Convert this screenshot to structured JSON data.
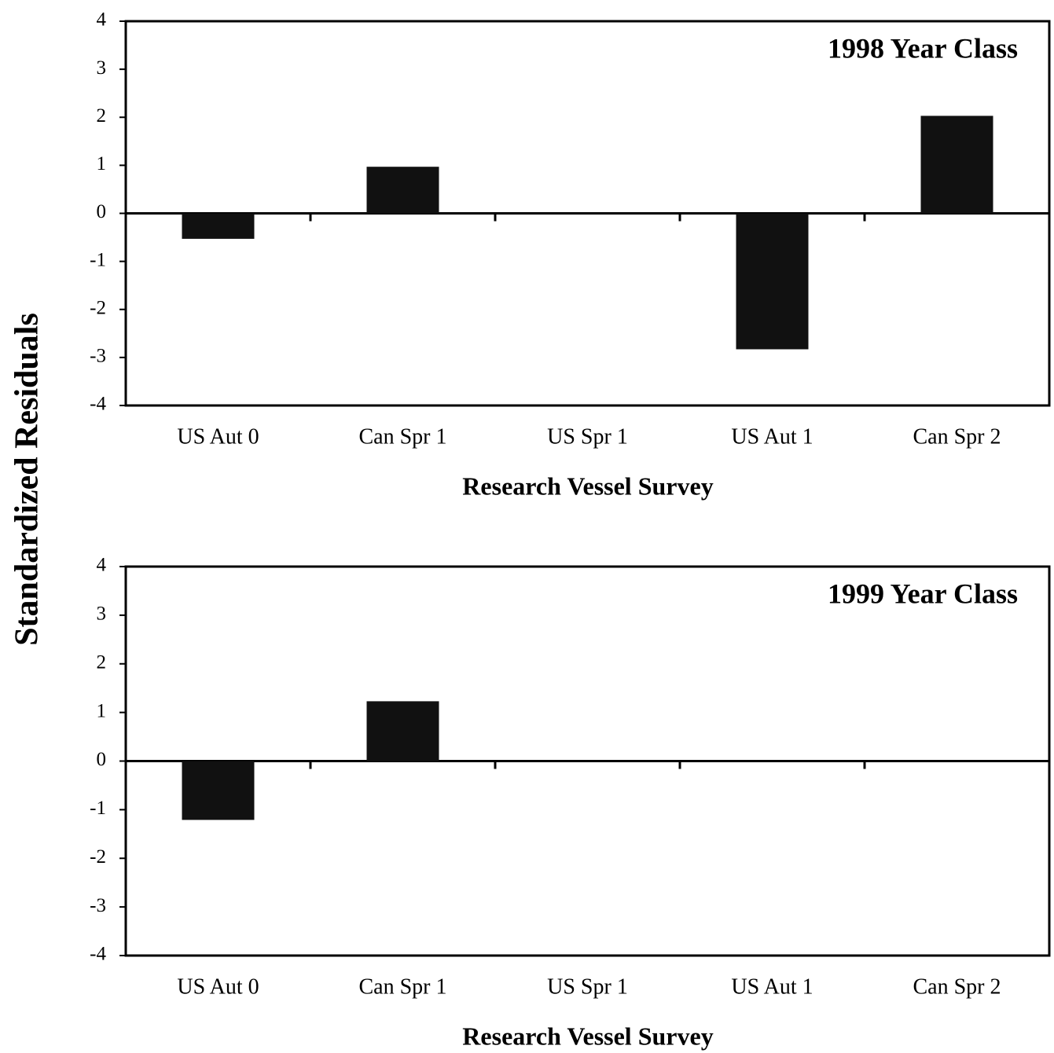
{
  "ylabel": "Standardized Residuals",
  "chart_data": [
    {
      "type": "bar",
      "title": "1998 Year Class",
      "x_label": "Research Vessel Survey",
      "categories": [
        "US Aut 0",
        "Can Spr 1",
        "US Spr 1",
        "US Aut 1",
        "Can Spr 2"
      ],
      "values": [
        -0.53,
        0.97,
        null,
        -2.83,
        2.03
      ],
      "color": "#111111",
      "ylim": [
        -4,
        4
      ],
      "yticks": [
        -4,
        -3,
        -2,
        -1,
        0,
        1,
        2,
        3,
        4
      ]
    },
    {
      "type": "bar",
      "title": "1999 Year Class",
      "x_label": "Research Vessel Survey",
      "categories": [
        "US Aut 0",
        "Can Spr 1",
        "US Spr 1",
        "US Aut 1",
        "Can Spr 2"
      ],
      "values": [
        -1.21,
        1.23,
        null,
        null,
        null
      ],
      "color": "#111111",
      "ylim": [
        -4,
        4
      ],
      "yticks": [
        -4,
        -3,
        -2,
        -1,
        0,
        1,
        2,
        3,
        4
      ]
    }
  ]
}
